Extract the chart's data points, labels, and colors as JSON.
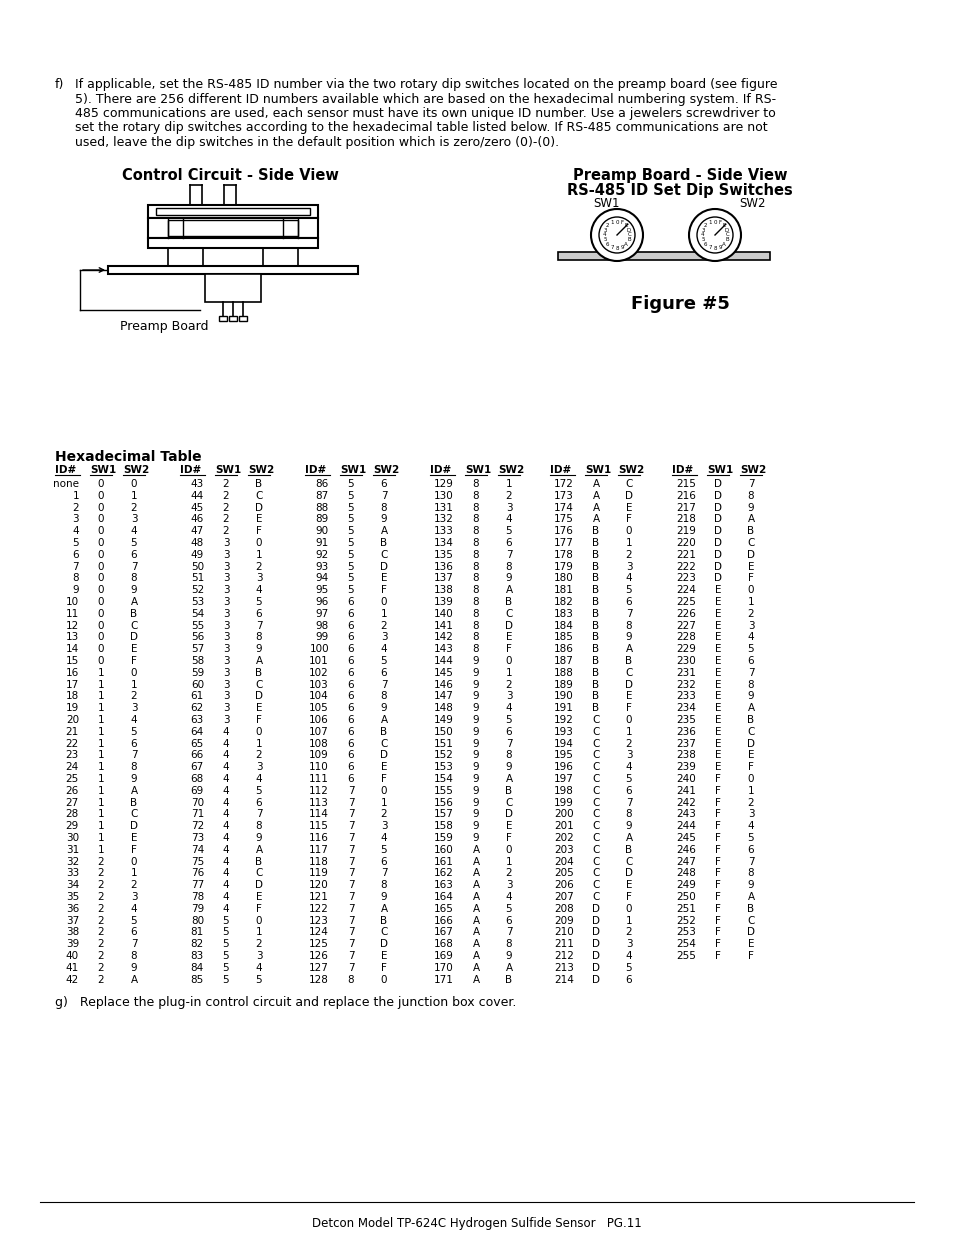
{
  "title_text": "Detcon Model TP-624C Hydrogen Sulfide Sensor   PG.11",
  "circuit_title": "Control Circuit - Side View",
  "preamp_title1": "Preamp Board - Side View",
  "preamp_title2": "RS-485 ID Set Dip Switches",
  "figure_label": "Figure #5",
  "hex_table_title": "Hexadecimal Table",
  "table_data": [
    [
      "none",
      "0",
      "0"
    ],
    [
      "1",
      "0",
      "1"
    ],
    [
      "2",
      "0",
      "2"
    ],
    [
      "3",
      "0",
      "3"
    ],
    [
      "4",
      "0",
      "4"
    ],
    [
      "5",
      "0",
      "5"
    ],
    [
      "6",
      "0",
      "6"
    ],
    [
      "7",
      "0",
      "7"
    ],
    [
      "8",
      "0",
      "8"
    ],
    [
      "9",
      "0",
      "9"
    ],
    [
      "10",
      "0",
      "A"
    ],
    [
      "11",
      "0",
      "B"
    ],
    [
      "12",
      "0",
      "C"
    ],
    [
      "13",
      "0",
      "D"
    ],
    [
      "14",
      "0",
      "E"
    ],
    [
      "15",
      "0",
      "F"
    ],
    [
      "16",
      "1",
      "0"
    ],
    [
      "17",
      "1",
      "1"
    ],
    [
      "18",
      "1",
      "2"
    ],
    [
      "19",
      "1",
      "3"
    ],
    [
      "20",
      "1",
      "4"
    ],
    [
      "21",
      "1",
      "5"
    ],
    [
      "22",
      "1",
      "6"
    ],
    [
      "23",
      "1",
      "7"
    ],
    [
      "24",
      "1",
      "8"
    ],
    [
      "25",
      "1",
      "9"
    ],
    [
      "26",
      "1",
      "A"
    ],
    [
      "27",
      "1",
      "B"
    ],
    [
      "28",
      "1",
      "C"
    ],
    [
      "29",
      "1",
      "D"
    ],
    [
      "30",
      "1",
      "E"
    ],
    [
      "31",
      "1",
      "F"
    ],
    [
      "32",
      "2",
      "0"
    ],
    [
      "33",
      "2",
      "1"
    ],
    [
      "34",
      "2",
      "2"
    ],
    [
      "35",
      "2",
      "3"
    ],
    [
      "36",
      "2",
      "4"
    ],
    [
      "37",
      "2",
      "5"
    ],
    [
      "38",
      "2",
      "6"
    ],
    [
      "39",
      "2",
      "7"
    ],
    [
      "40",
      "2",
      "8"
    ],
    [
      "41",
      "2",
      "9"
    ],
    [
      "42",
      "2",
      "A"
    ],
    [
      "43",
      "2",
      "B"
    ],
    [
      "44",
      "2",
      "C"
    ],
    [
      "45",
      "2",
      "D"
    ],
    [
      "46",
      "2",
      "E"
    ],
    [
      "47",
      "2",
      "F"
    ],
    [
      "48",
      "3",
      "0"
    ],
    [
      "49",
      "3",
      "1"
    ],
    [
      "50",
      "3",
      "2"
    ],
    [
      "51",
      "3",
      "3"
    ],
    [
      "52",
      "3",
      "4"
    ],
    [
      "53",
      "3",
      "5"
    ],
    [
      "54",
      "3",
      "6"
    ],
    [
      "55",
      "3",
      "7"
    ],
    [
      "56",
      "3",
      "8"
    ],
    [
      "57",
      "3",
      "9"
    ],
    [
      "58",
      "3",
      "A"
    ],
    [
      "59",
      "3",
      "B"
    ],
    [
      "60",
      "3",
      "C"
    ],
    [
      "61",
      "3",
      "D"
    ],
    [
      "62",
      "3",
      "E"
    ],
    [
      "63",
      "3",
      "F"
    ],
    [
      "64",
      "4",
      "0"
    ],
    [
      "65",
      "4",
      "1"
    ],
    [
      "66",
      "4",
      "2"
    ],
    [
      "67",
      "4",
      "3"
    ],
    [
      "68",
      "4",
      "4"
    ],
    [
      "69",
      "4",
      "5"
    ],
    [
      "70",
      "4",
      "6"
    ],
    [
      "71",
      "4",
      "7"
    ],
    [
      "72",
      "4",
      "8"
    ],
    [
      "73",
      "4",
      "9"
    ],
    [
      "74",
      "4",
      "A"
    ],
    [
      "75",
      "4",
      "B"
    ],
    [
      "76",
      "4",
      "C"
    ],
    [
      "77",
      "4",
      "D"
    ],
    [
      "78",
      "4",
      "E"
    ],
    [
      "79",
      "4",
      "F"
    ],
    [
      "80",
      "5",
      "0"
    ],
    [
      "81",
      "5",
      "1"
    ],
    [
      "82",
      "5",
      "2"
    ],
    [
      "83",
      "5",
      "3"
    ],
    [
      "84",
      "5",
      "4"
    ],
    [
      "85",
      "5",
      "5"
    ],
    [
      "86",
      "5",
      "6"
    ],
    [
      "87",
      "5",
      "7"
    ],
    [
      "88",
      "5",
      "8"
    ],
    [
      "89",
      "5",
      "9"
    ],
    [
      "90",
      "5",
      "A"
    ],
    [
      "91",
      "5",
      "B"
    ],
    [
      "92",
      "5",
      "C"
    ],
    [
      "93",
      "5",
      "D"
    ],
    [
      "94",
      "5",
      "E"
    ],
    [
      "95",
      "5",
      "F"
    ],
    [
      "96",
      "6",
      "0"
    ],
    [
      "97",
      "6",
      "1"
    ],
    [
      "98",
      "6",
      "2"
    ],
    [
      "99",
      "6",
      "3"
    ],
    [
      "100",
      "6",
      "4"
    ],
    [
      "101",
      "6",
      "5"
    ],
    [
      "102",
      "6",
      "6"
    ],
    [
      "103",
      "6",
      "7"
    ],
    [
      "104",
      "6",
      "8"
    ],
    [
      "105",
      "6",
      "9"
    ],
    [
      "106",
      "6",
      "A"
    ],
    [
      "107",
      "6",
      "B"
    ],
    [
      "108",
      "6",
      "C"
    ],
    [
      "109",
      "6",
      "D"
    ],
    [
      "110",
      "6",
      "E"
    ],
    [
      "111",
      "6",
      "F"
    ],
    [
      "112",
      "7",
      "0"
    ],
    [
      "113",
      "7",
      "1"
    ],
    [
      "114",
      "7",
      "2"
    ],
    [
      "115",
      "7",
      "3"
    ],
    [
      "116",
      "7",
      "4"
    ],
    [
      "117",
      "7",
      "5"
    ],
    [
      "118",
      "7",
      "6"
    ],
    [
      "119",
      "7",
      "7"
    ],
    [
      "120",
      "7",
      "8"
    ],
    [
      "121",
      "7",
      "9"
    ],
    [
      "122",
      "7",
      "A"
    ],
    [
      "123",
      "7",
      "B"
    ],
    [
      "124",
      "7",
      "C"
    ],
    [
      "125",
      "7",
      "D"
    ],
    [
      "126",
      "7",
      "E"
    ],
    [
      "127",
      "7",
      "F"
    ],
    [
      "128",
      "8",
      "0"
    ],
    [
      "129",
      "8",
      "1"
    ],
    [
      "130",
      "8",
      "2"
    ],
    [
      "131",
      "8",
      "3"
    ],
    [
      "132",
      "8",
      "4"
    ],
    [
      "133",
      "8",
      "5"
    ],
    [
      "134",
      "8",
      "6"
    ],
    [
      "135",
      "8",
      "7"
    ],
    [
      "136",
      "8",
      "8"
    ],
    [
      "137",
      "8",
      "9"
    ],
    [
      "138",
      "8",
      "A"
    ],
    [
      "139",
      "8",
      "B"
    ],
    [
      "140",
      "8",
      "C"
    ],
    [
      "141",
      "8",
      "D"
    ],
    [
      "142",
      "8",
      "E"
    ],
    [
      "143",
      "8",
      "F"
    ],
    [
      "144",
      "9",
      "0"
    ],
    [
      "145",
      "9",
      "1"
    ],
    [
      "146",
      "9",
      "2"
    ],
    [
      "147",
      "9",
      "3"
    ],
    [
      "148",
      "9",
      "4"
    ],
    [
      "149",
      "9",
      "5"
    ],
    [
      "150",
      "9",
      "6"
    ],
    [
      "151",
      "9",
      "7"
    ],
    [
      "152",
      "9",
      "8"
    ],
    [
      "153",
      "9",
      "9"
    ],
    [
      "154",
      "9",
      "A"
    ],
    [
      "155",
      "9",
      "B"
    ],
    [
      "156",
      "9",
      "C"
    ],
    [
      "157",
      "9",
      "D"
    ],
    [
      "158",
      "9",
      "E"
    ],
    [
      "159",
      "9",
      "F"
    ],
    [
      "160",
      "A",
      "0"
    ],
    [
      "161",
      "A",
      "1"
    ],
    [
      "162",
      "A",
      "2"
    ],
    [
      "163",
      "A",
      "3"
    ],
    [
      "164",
      "A",
      "4"
    ],
    [
      "165",
      "A",
      "5"
    ],
    [
      "166",
      "A",
      "6"
    ],
    [
      "167",
      "A",
      "7"
    ],
    [
      "168",
      "A",
      "8"
    ],
    [
      "169",
      "A",
      "9"
    ],
    [
      "170",
      "A",
      "A"
    ],
    [
      "171",
      "A",
      "B"
    ],
    [
      "172",
      "A",
      "C"
    ],
    [
      "173",
      "A",
      "D"
    ],
    [
      "174",
      "A",
      "E"
    ],
    [
      "175",
      "A",
      "F"
    ],
    [
      "176",
      "B",
      "0"
    ],
    [
      "177",
      "B",
      "1"
    ],
    [
      "178",
      "B",
      "2"
    ],
    [
      "179",
      "B",
      "3"
    ],
    [
      "180",
      "B",
      "4"
    ],
    [
      "181",
      "B",
      "5"
    ],
    [
      "182",
      "B",
      "6"
    ],
    [
      "183",
      "B",
      "7"
    ],
    [
      "184",
      "B",
      "8"
    ],
    [
      "185",
      "B",
      "9"
    ],
    [
      "186",
      "B",
      "A"
    ],
    [
      "187",
      "B",
      "B"
    ],
    [
      "188",
      "B",
      "C"
    ],
    [
      "189",
      "B",
      "D"
    ],
    [
      "190",
      "B",
      "E"
    ],
    [
      "191",
      "B",
      "F"
    ],
    [
      "192",
      "C",
      "0"
    ],
    [
      "193",
      "C",
      "1"
    ],
    [
      "194",
      "C",
      "2"
    ],
    [
      "195",
      "C",
      "3"
    ],
    [
      "196",
      "C",
      "4"
    ],
    [
      "197",
      "C",
      "5"
    ],
    [
      "198",
      "C",
      "6"
    ],
    [
      "199",
      "C",
      "7"
    ],
    [
      "200",
      "C",
      "8"
    ],
    [
      "201",
      "C",
      "9"
    ],
    [
      "202",
      "C",
      "A"
    ],
    [
      "203",
      "C",
      "B"
    ],
    [
      "204",
      "C",
      "C"
    ],
    [
      "205",
      "C",
      "D"
    ],
    [
      "206",
      "C",
      "E"
    ],
    [
      "207",
      "C",
      "F"
    ],
    [
      "208",
      "D",
      "0"
    ],
    [
      "209",
      "D",
      "1"
    ],
    [
      "210",
      "D",
      "2"
    ],
    [
      "211",
      "D",
      "3"
    ],
    [
      "212",
      "D",
      "4"
    ],
    [
      "213",
      "D",
      "5"
    ],
    [
      "214",
      "D",
      "6"
    ],
    [
      "215",
      "D",
      "7"
    ],
    [
      "216",
      "D",
      "8"
    ],
    [
      "217",
      "D",
      "9"
    ],
    [
      "218",
      "D",
      "A"
    ],
    [
      "219",
      "D",
      "B"
    ],
    [
      "220",
      "D",
      "C"
    ],
    [
      "221",
      "D",
      "D"
    ],
    [
      "222",
      "D",
      "E"
    ],
    [
      "223",
      "D",
      "F"
    ],
    [
      "224",
      "E",
      "0"
    ],
    [
      "225",
      "E",
      "1"
    ],
    [
      "226",
      "E",
      "2"
    ],
    [
      "227",
      "E",
      "3"
    ],
    [
      "228",
      "E",
      "4"
    ],
    [
      "229",
      "E",
      "5"
    ],
    [
      "230",
      "E",
      "6"
    ],
    [
      "231",
      "E",
      "7"
    ],
    [
      "232",
      "E",
      "8"
    ],
    [
      "233",
      "E",
      "9"
    ],
    [
      "234",
      "E",
      "A"
    ],
    [
      "235",
      "E",
      "B"
    ],
    [
      "236",
      "E",
      "C"
    ],
    [
      "237",
      "E",
      "D"
    ],
    [
      "238",
      "E",
      "E"
    ],
    [
      "239",
      "E",
      "F"
    ],
    [
      "240",
      "F",
      "0"
    ],
    [
      "241",
      "F",
      "1"
    ],
    [
      "242",
      "F",
      "2"
    ],
    [
      "243",
      "F",
      "3"
    ],
    [
      "244",
      "F",
      "4"
    ],
    [
      "245",
      "F",
      "5"
    ],
    [
      "246",
      "F",
      "6"
    ],
    [
      "247",
      "F",
      "7"
    ],
    [
      "248",
      "F",
      "8"
    ],
    [
      "249",
      "F",
      "9"
    ],
    [
      "250",
      "F",
      "A"
    ],
    [
      "251",
      "F",
      "B"
    ],
    [
      "252",
      "F",
      "C"
    ],
    [
      "253",
      "F",
      "D"
    ],
    [
      "254",
      "F",
      "E"
    ],
    [
      "255",
      "F",
      "F"
    ]
  ]
}
